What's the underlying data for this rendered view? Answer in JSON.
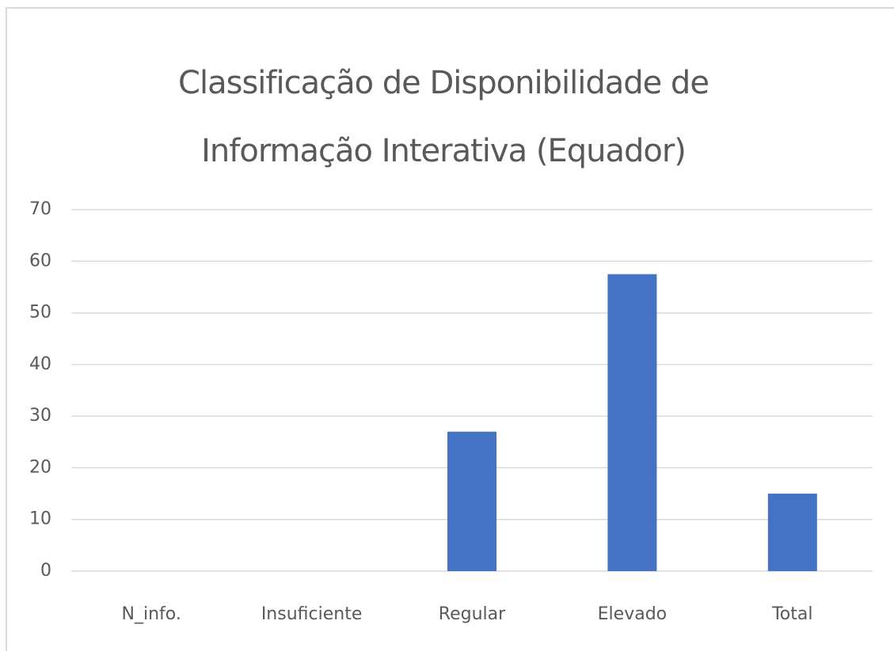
{
  "chart_data": {
    "type": "bar",
    "title": "Classificação de Disponibilidade de Informação Interativa (Equador)",
    "categories": [
      "N_info.",
      "Insuficiente",
      "Regular",
      "Elevado",
      "Total"
    ],
    "values": [
      0,
      0,
      27,
      57.5,
      15
    ],
    "color": "#4472c4",
    "ylim": [
      0,
      70
    ],
    "yticks": [
      0,
      10,
      20,
      30,
      40,
      50,
      60,
      70
    ],
    "grid": true
  }
}
